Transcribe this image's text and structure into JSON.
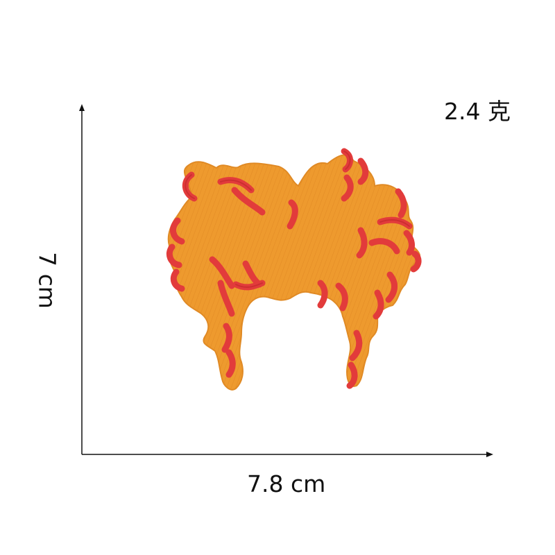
{
  "dimensions": {
    "weight": "2.4 克",
    "height": "7 cm",
    "width": "7.8 cm"
  },
  "patch": {
    "subject": "flame-shaped embroidered patch",
    "colors": {
      "body": "#EE9A2E",
      "body_shade": "#D9801C",
      "edge": "#E23B3B",
      "edge_dark": "#C42A2E"
    }
  },
  "axes_color": "#111111"
}
